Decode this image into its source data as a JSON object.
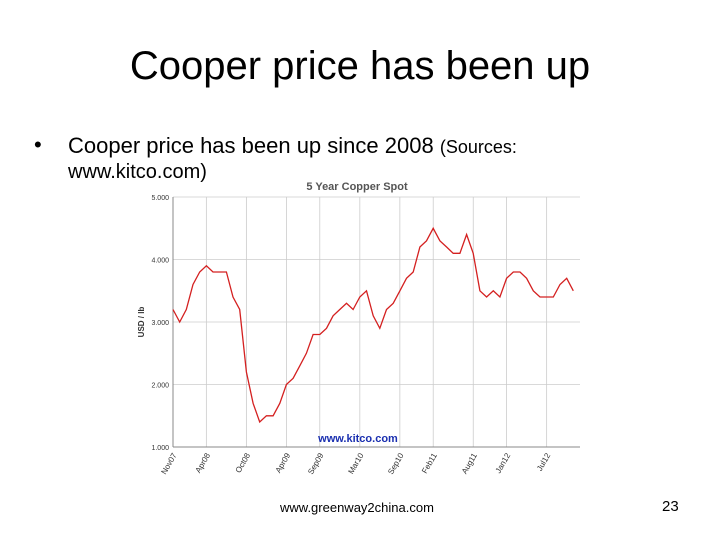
{
  "slide": {
    "title": "Cooper price has been up",
    "bullet": "Cooper price has been up since 2008",
    "source_open": "(Sources:",
    "source_url": "www.kitco.com)",
    "footer": "www.greenway2china.com",
    "page_number": "23"
  },
  "chart_data": {
    "type": "line",
    "title": "5 Year Copper Spot",
    "y_label": "USD / lb",
    "watermark": "www.kitco.com",
    "x": [
      "Nov07",
      null,
      null,
      null,
      null,
      "Apr08",
      null,
      null,
      null,
      null,
      null,
      "Oct08",
      null,
      null,
      null,
      null,
      null,
      "Apr09",
      null,
      null,
      null,
      null,
      "Sep09",
      null,
      null,
      null,
      null,
      null,
      "Mar10",
      null,
      null,
      null,
      null,
      null,
      "Sep10",
      null,
      null,
      null,
      null,
      "Feb11",
      null,
      null,
      null,
      null,
      null,
      "Aug11",
      null,
      null,
      null,
      null,
      "Jan12",
      null,
      null,
      null,
      null,
      null,
      "Jul12",
      null,
      null,
      null,
      null
    ],
    "series": [
      {
        "name": "Copper",
        "color": "#d42020",
        "values": [
          3.2,
          3.0,
          3.2,
          3.6,
          3.8,
          3.9,
          3.8,
          3.8,
          3.8,
          3.4,
          3.2,
          2.2,
          1.7,
          1.4,
          1.5,
          1.5,
          1.7,
          2.0,
          2.1,
          2.3,
          2.5,
          2.8,
          2.8,
          2.9,
          3.1,
          3.2,
          3.3,
          3.2,
          3.4,
          3.5,
          3.1,
          2.9,
          3.2,
          3.3,
          3.5,
          3.7,
          3.8,
          4.2,
          4.3,
          4.5,
          4.3,
          4.2,
          4.1,
          4.1,
          4.4,
          4.1,
          3.5,
          3.4,
          3.5,
          3.4,
          3.7,
          3.8,
          3.8,
          3.7,
          3.5,
          3.4,
          3.4,
          3.4,
          3.6,
          3.7,
          3.5
        ]
      }
    ],
    "ylim": [
      1,
      5
    ],
    "yticks": [
      {
        "value": 1,
        "label": "1.000"
      },
      {
        "value": 2,
        "label": "2.000"
      },
      {
        "value": 3,
        "label": "3.000"
      },
      {
        "value": 4,
        "label": "4.000"
      },
      {
        "value": 5,
        "label": "5.000"
      }
    ],
    "grid": true
  }
}
